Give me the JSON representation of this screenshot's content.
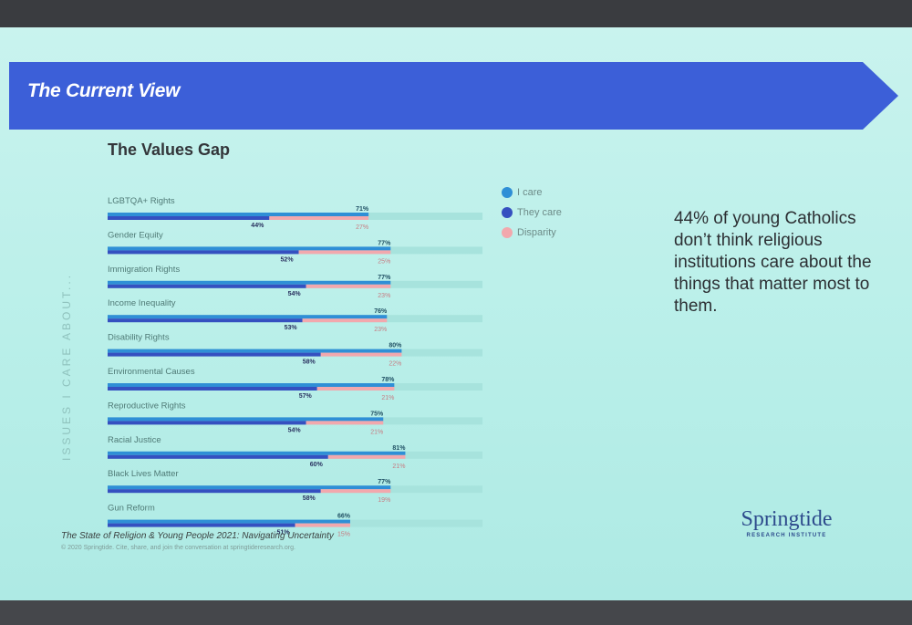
{
  "banner": {
    "title": "The Current View"
  },
  "chart_data": {
    "type": "bar",
    "title": "The Values Gap",
    "side_label": "ISSUES I CARE ABOUT...",
    "categories": [
      "LGBTQA+ Rights",
      "Gender Equity",
      "Immigration Rights",
      "Income Inequality",
      "Disability Rights",
      "Environmental Causes",
      "Reproductive Rights",
      "Racial Justice",
      "Black Lives Matter",
      "Gun Reform"
    ],
    "series": [
      {
        "name": "I care",
        "values": [
          71,
          77,
          77,
          76,
          80,
          78,
          75,
          81,
          77,
          66
        ],
        "labels": [
          "71%",
          "77%",
          "77%",
          "76%",
          "80%",
          "78%",
          "75%",
          "81%",
          "77%",
          "66%"
        ]
      },
      {
        "name": "They care",
        "values": [
          44,
          52,
          54,
          53,
          58,
          57,
          54,
          60,
          58,
          51
        ],
        "labels": [
          "44%",
          "52%",
          "54%",
          "53%",
          "58%",
          "57%",
          "54%",
          "60%",
          "58%",
          "51%"
        ]
      },
      {
        "name": "Disparity",
        "values": [
          27,
          25,
          23,
          23,
          22,
          21,
          21,
          21,
          19,
          15
        ],
        "labels": [
          "27%",
          "25%",
          "23%",
          "23%",
          "22%",
          "21%",
          "21%",
          "21%",
          "19%",
          "15%"
        ]
      }
    ],
    "xlim": [
      0,
      100
    ],
    "legend_position": "right",
    "grid": false,
    "colors": {
      "i_care": "#2f8fd6",
      "they_care": "#3550c0",
      "disparity": "#f2a8ad",
      "track": "#a7e3dd"
    }
  },
  "callout": {
    "text": "44% of young Catholics don’t think religious institutions care about the things that matter most to them."
  },
  "footer": {
    "title": "The State of Religion & Young People 2021: Navigating Uncertainty",
    "copyright": "© 2020 Springtide. Cite, share, and join the conversation at springtideresearch.org."
  },
  "logo": {
    "name": "Springtide",
    "subtitle": "RESEARCH INSTITUTE"
  }
}
